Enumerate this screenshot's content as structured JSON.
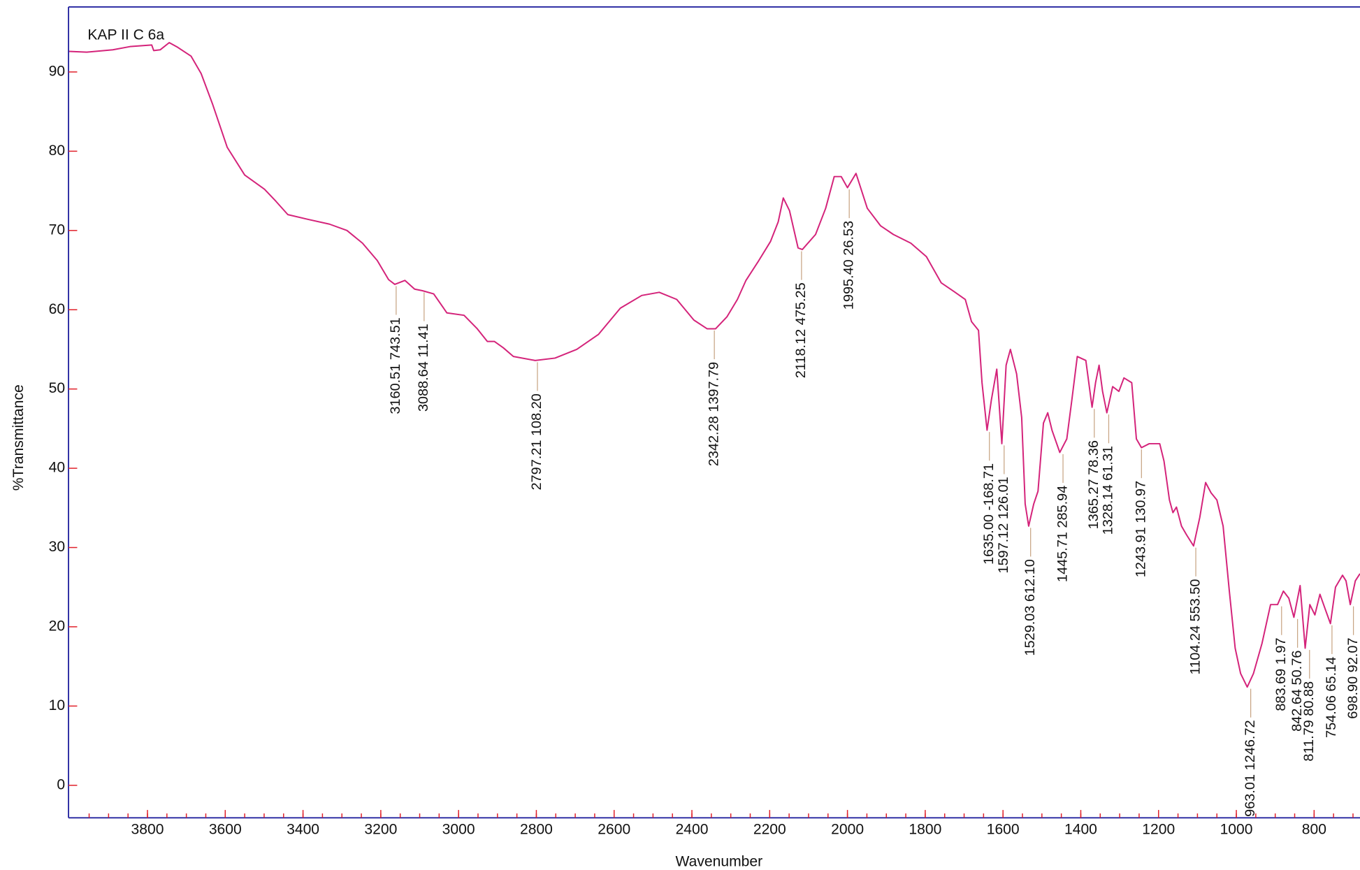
{
  "chart_data": {
    "type": "line",
    "title": "KAP II C 6a",
    "xlabel": "Wavenumber",
    "ylabel": "%Transmittance",
    "color": "#d4237a",
    "xlim": [
      4003,
      682
    ],
    "ylim": [
      -4.1,
      98.2
    ],
    "xticks": [
      3800,
      3600,
      3400,
      3200,
      3000,
      2800,
      2600,
      2400,
      2200,
      2000,
      1800,
      1600,
      1400,
      1200,
      1000,
      800
    ],
    "xminorticks": [
      3950,
      3900,
      3850,
      3800,
      3750,
      3700,
      3650,
      3600,
      3550,
      3500,
      3450,
      3400,
      3350,
      3300,
      3250,
      3200,
      3150,
      3100,
      3050,
      3000,
      2950,
      2900,
      2850,
      2800,
      2750,
      2700,
      2650,
      2600,
      2550,
      2500,
      2450,
      2400,
      2350,
      2300,
      2250,
      2200,
      2150,
      2100,
      2050,
      2000,
      1950,
      1900,
      1850,
      1800,
      1750,
      1700,
      1650,
      1600,
      1550,
      1500,
      1450,
      1400,
      1350,
      1300,
      1250,
      1200,
      1150,
      1100,
      1050,
      1000,
      950,
      900,
      850,
      800,
      750,
      700
    ],
    "yticks": [
      0,
      10,
      20,
      30,
      40,
      50,
      60,
      70,
      80,
      90
    ],
    "x": [
      4003,
      3956,
      3889,
      3845,
      3789,
      3784,
      3767,
      3744,
      3722,
      3688,
      3662,
      3633,
      3595,
      3550,
      3499,
      3470,
      3439,
      3387,
      3332,
      3287,
      3247,
      3209,
      3180,
      3164,
      3138,
      3113,
      3093,
      3064,
      3030,
      2986,
      2952,
      2926,
      2908,
      2885,
      2859,
      2803,
      2752,
      2696,
      2640,
      2584,
      2529,
      2484,
      2439,
      2395,
      2361,
      2339,
      2310,
      2283,
      2261,
      2228,
      2198,
      2178,
      2165,
      2149,
      2127,
      2116,
      2082,
      2056,
      2034,
      2016,
      2000,
      1978,
      1949,
      1915,
      1882,
      1837,
      1797,
      1759,
      1726,
      1697,
      1681,
      1663,
      1654,
      1641,
      1630,
      1616,
      1603,
      1592,
      1581,
      1565,
      1552,
      1543,
      1534,
      1521,
      1510,
      1496,
      1485,
      1474,
      1454,
      1436,
      1423,
      1409,
      1387,
      1371,
      1362,
      1353,
      1344,
      1333,
      1318,
      1302,
      1289,
      1269,
      1257,
      1244,
      1224,
      1197,
      1186,
      1172,
      1163,
      1154,
      1141,
      1128,
      1110,
      1094,
      1079,
      1065,
      1050,
      1034,
      1018,
      1003,
      989,
      972,
      956,
      934,
      912,
      894,
      879,
      865,
      852,
      836,
      823,
      811,
      798,
      785,
      772,
      758,
      745,
      727,
      718,
      707,
      694,
      682
    ],
    "values": [
      92.6,
      92.5,
      92.8,
      93.2,
      93.4,
      92.7,
      92.8,
      93.7,
      93.1,
      92.0,
      89.8,
      86.0,
      80.5,
      77.0,
      75.2,
      73.7,
      72.0,
      71.4,
      70.8,
      70.0,
      68.4,
      66.2,
      63.8,
      63.2,
      63.7,
      62.6,
      62.4,
      62.0,
      59.6,
      59.3,
      57.6,
      56.0,
      56.0,
      55.2,
      54.1,
      53.6,
      53.9,
      55.0,
      56.9,
      60.2,
      61.8,
      62.2,
      61.3,
      58.7,
      57.6,
      57.6,
      59.1,
      61.3,
      63.7,
      66.2,
      68.6,
      71.1,
      74.1,
      72.5,
      67.8,
      67.6,
      69.5,
      72.8,
      76.8,
      76.8,
      75.4,
      77.2,
      72.8,
      70.6,
      69.5,
      68.4,
      66.7,
      63.4,
      62.3,
      61.3,
      58.5,
      57.4,
      50.8,
      44.8,
      48.6,
      52.5,
      43.1,
      53.0,
      55.0,
      51.9,
      46.4,
      35.5,
      32.7,
      35.5,
      37.1,
      45.7,
      47.0,
      44.8,
      42.0,
      43.7,
      48.6,
      54.1,
      53.6,
      47.7,
      50.8,
      53.0,
      49.7,
      47.0,
      50.3,
      49.7,
      51.4,
      50.8,
      43.7,
      42.6,
      43.1,
      43.1,
      40.9,
      36.0,
      34.4,
      35.1,
      32.7,
      31.6,
      30.2,
      33.8,
      38.2,
      36.9,
      36.0,
      32.7,
      24.5,
      17.3,
      14.1,
      12.4,
      14.1,
      17.9,
      22.8,
      22.8,
      24.5,
      23.6,
      21.2,
      25.2,
      17.3,
      22.8,
      21.5,
      24.1,
      22.3,
      20.4,
      25.0,
      26.5,
      25.8,
      22.8,
      25.8,
      26.7
    ],
    "annotations": [
      {
        "text": "3160.51  743.51",
        "x": 3160.51,
        "y": 63.2
      },
      {
        "text": "3088.64  11.41",
        "x": 3088.64,
        "y": 62.4
      },
      {
        "text": "2797.21  108.20",
        "x": 2797.21,
        "y": 53.6
      },
      {
        "text": "2342.28  1397.79",
        "x": 2342.28,
        "y": 57.6
      },
      {
        "text": "2118.12  475.25",
        "x": 2118.12,
        "y": 67.6
      },
      {
        "text": "1995.40  26.53",
        "x": 1995.4,
        "y": 75.4
      },
      {
        "text": "1635.00  -168.71",
        "x": 1635.0,
        "y": 44.8
      },
      {
        "text": "1597.12  126.01",
        "x": 1597.12,
        "y": 43.1
      },
      {
        "text": "1529.03  612.10",
        "x": 1529.03,
        "y": 32.7
      },
      {
        "text": "1445.71  285.94",
        "x": 1445.71,
        "y": 42.0
      },
      {
        "text": "1365.27  78.36",
        "x": 1365.27,
        "y": 47.7
      },
      {
        "text": "1328.14  61.31",
        "x": 1328.14,
        "y": 47.0
      },
      {
        "text": "1243.91  130.97",
        "x": 1243.91,
        "y": 42.6
      },
      {
        "text": "1104.24  553.50",
        "x": 1104.24,
        "y": 30.2
      },
      {
        "text": "963.01  1246.72",
        "x": 963.01,
        "y": 12.4
      },
      {
        "text": "883.69  1.97",
        "x": 883.69,
        "y": 22.8
      },
      {
        "text": "842.64  50.76",
        "x": 842.64,
        "y": 21.2
      },
      {
        "text": "811.79  80.88",
        "x": 811.79,
        "y": 17.3
      },
      {
        "text": "754.06  65.14",
        "x": 754.06,
        "y": 20.4
      },
      {
        "text": "698.90  92.07",
        "x": 698.9,
        "y": 22.8
      }
    ]
  }
}
